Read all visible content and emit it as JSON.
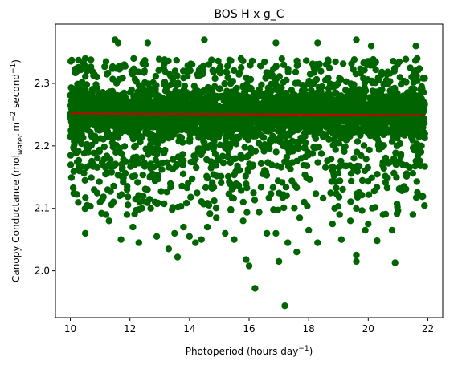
{
  "chart_data": {
    "type": "scatter",
    "title": "BOS H x g_C",
    "xlabel": {
      "main": "Photoperiod (hours day",
      "sup": "−1",
      "close": ")"
    },
    "ylabel": {
      "part1": "Canopy Conductance (mol",
      "sub": "water",
      "part2": " m",
      "sup1": "−2",
      "part3": " second",
      "sup2": "−1",
      "part4": ")"
    },
    "xlim": [
      9.5,
      22.5
    ],
    "ylim": [
      1.925,
      2.395
    ],
    "xticks": [
      10,
      12,
      14,
      16,
      18,
      20,
      22
    ],
    "xtick_labels": [
      "10",
      "12",
      "14",
      "16",
      "18",
      "20",
      "22"
    ],
    "yticks": [
      2.0,
      2.1,
      2.2,
      2.3
    ],
    "ytick_labels": [
      "2.0",
      "2.1",
      "2.2",
      "2.3"
    ],
    "grid": false,
    "legend": "none",
    "series": [
      {
        "kind": "points",
        "color": "#006400",
        "x_range": [
          10.0,
          21.9
        ],
        "dense_band": [
          2.165,
          2.34
        ],
        "points": [
          [
            10.0,
            2.281
          ],
          [
            10.0,
            2.215
          ],
          [
            10.3,
            2.16
          ],
          [
            10.5,
            2.06
          ],
          [
            10.6,
            2.19
          ],
          [
            10.8,
            2.13
          ],
          [
            11.0,
            2.11
          ],
          [
            11.2,
            2.09
          ],
          [
            11.3,
            2.08
          ],
          [
            11.5,
            2.37
          ],
          [
            11.6,
            2.365
          ],
          [
            11.7,
            2.05
          ],
          [
            11.9,
            2.09
          ],
          [
            12.1,
            2.07
          ],
          [
            12.3,
            2.045
          ],
          [
            12.4,
            2.1
          ],
          [
            12.7,
            2.1
          ],
          [
            12.9,
            2.055
          ],
          [
            13.3,
            2.035
          ],
          [
            13.5,
            2.06
          ],
          [
            13.6,
            2.022
          ],
          [
            13.8,
            2.07
          ],
          [
            14.0,
            2.055
          ],
          [
            14.2,
            2.045
          ],
          [
            14.4,
            2.05
          ],
          [
            14.5,
            2.37
          ],
          [
            14.6,
            2.07
          ],
          [
            14.9,
            2.085
          ],
          [
            15.2,
            2.06
          ],
          [
            15.5,
            2.05
          ],
          [
            15.8,
            2.08
          ],
          [
            15.9,
            2.018
          ],
          [
            16.0,
            2.008
          ],
          [
            16.2,
            1.972
          ],
          [
            16.6,
            2.06
          ],
          [
            16.9,
            2.06
          ],
          [
            17.0,
            2.015
          ],
          [
            17.2,
            1.944
          ],
          [
            17.3,
            2.045
          ],
          [
            17.6,
            2.03
          ],
          [
            17.7,
            2.085
          ],
          [
            18.0,
            2.065
          ],
          [
            18.3,
            2.045
          ],
          [
            18.8,
            2.075
          ],
          [
            19.1,
            2.05
          ],
          [
            19.4,
            2.08
          ],
          [
            19.6,
            2.025
          ],
          [
            19.6,
            2.015
          ],
          [
            19.9,
            2.065
          ],
          [
            20.0,
            2.075
          ],
          [
            20.3,
            2.048
          ],
          [
            20.5,
            2.09
          ],
          [
            20.8,
            2.065
          ],
          [
            20.9,
            2.013
          ],
          [
            21.2,
            2.135
          ],
          [
            21.5,
            2.09
          ],
          [
            21.8,
            2.12
          ],
          [
            21.9,
            2.22
          ],
          [
            21.6,
            2.36
          ],
          [
            20.1,
            2.36
          ],
          [
            19.6,
            2.37
          ],
          [
            18.3,
            2.365
          ],
          [
            16.9,
            2.365
          ],
          [
            12.6,
            2.365
          ],
          [
            11.2,
            2.335
          ],
          [
            10.5,
            2.34
          ]
        ]
      },
      {
        "kind": "regression-line",
        "color": "#cc0000",
        "x": [
          10.0,
          21.9
        ],
        "y": [
          2.252,
          2.249
        ]
      }
    ]
  }
}
